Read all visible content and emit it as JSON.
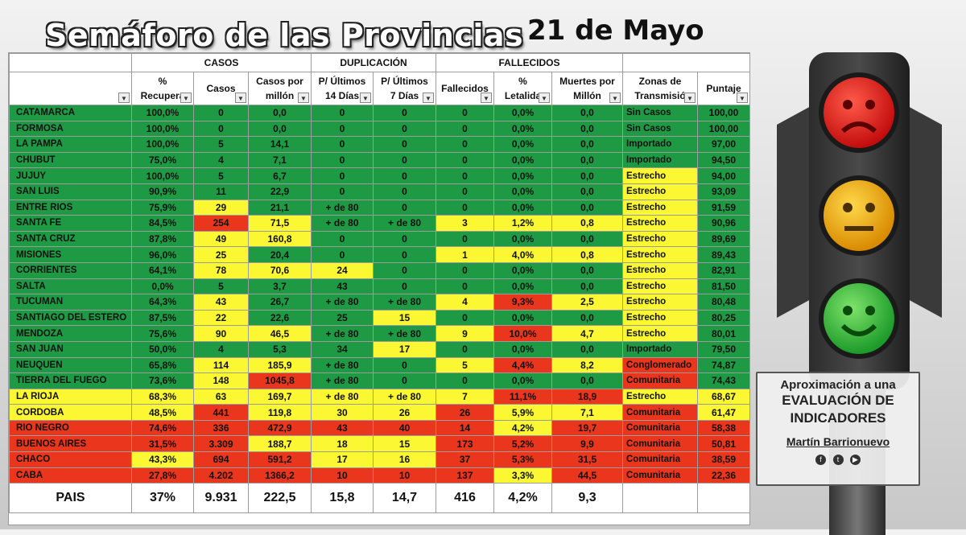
{
  "title": "Semáforo de las Provincias",
  "date": "21 de Mayo",
  "groups": {
    "casos": "CASOS",
    "duplicacion": "DUPLICACIÓN",
    "fallecidos": "FALLECIDOS"
  },
  "columns": [
    "",
    "% Recuperados",
    "Casos",
    "Casos por millón",
    "P/ Últimos 14 Días",
    "P/ Últimos 7 Días",
    "Fallecidos",
    "% Letalidad",
    "Muertes por Millón",
    "Zonas de Transmisión",
    "Puntaje"
  ],
  "col_display": [
    [
      "",
      ""
    ],
    [
      "%",
      "Recupera"
    ],
    [
      "Casos",
      ""
    ],
    [
      "Casos por",
      "millón"
    ],
    [
      "P/ Últimos",
      "14 Días"
    ],
    [
      "P/ Últimos",
      "7 Días"
    ],
    [
      "Fallecidos",
      ""
    ],
    [
      "%",
      "Letalida"
    ],
    [
      "Muertes por",
      "Millón"
    ],
    [
      "Zonas de",
      "Transmisió"
    ],
    [
      "Puntaje",
      ""
    ]
  ],
  "rows": [
    {
      "c": [
        "CATAMARCA",
        "100,0%",
        "0",
        "0,0",
        "0",
        "0",
        "0",
        "0,0%",
        "0,0",
        "Sin Casos",
        "100,00"
      ],
      "k": [
        "g",
        "g",
        "g",
        "g",
        "g",
        "g",
        "g",
        "g",
        "g",
        "g",
        "g"
      ]
    },
    {
      "c": [
        "FORMOSA",
        "100,0%",
        "0",
        "0,0",
        "0",
        "0",
        "0",
        "0,0%",
        "0,0",
        "Sin Casos",
        "100,00"
      ],
      "k": [
        "g",
        "g",
        "g",
        "g",
        "g",
        "g",
        "g",
        "g",
        "g",
        "g",
        "g"
      ]
    },
    {
      "c": [
        "LA PAMPA",
        "100,0%",
        "5",
        "14,1",
        "0",
        "0",
        "0",
        "0,0%",
        "0,0",
        "Importado",
        "97,00"
      ],
      "k": [
        "g",
        "g",
        "g",
        "g",
        "g",
        "g",
        "g",
        "g",
        "g",
        "g",
        "g"
      ]
    },
    {
      "c": [
        "CHUBUT",
        "75,0%",
        "4",
        "7,1",
        "0",
        "0",
        "0",
        "0,0%",
        "0,0",
        "Importado",
        "94,50"
      ],
      "k": [
        "g",
        "g",
        "g",
        "g",
        "g",
        "g",
        "g",
        "g",
        "g",
        "g",
        "g"
      ]
    },
    {
      "c": [
        "JUJUY",
        "100,0%",
        "5",
        "6,7",
        "0",
        "0",
        "0",
        "0,0%",
        "0,0",
        "Estrecho",
        "94,00"
      ],
      "k": [
        "g",
        "g",
        "g",
        "g",
        "g",
        "g",
        "g",
        "g",
        "g",
        "y",
        "g"
      ]
    },
    {
      "c": [
        "SAN LUIS",
        "90,9%",
        "11",
        "22,9",
        "0",
        "0",
        "0",
        "0,0%",
        "0,0",
        "Estrecho",
        "93,09"
      ],
      "k": [
        "g",
        "g",
        "g",
        "g",
        "g",
        "g",
        "g",
        "g",
        "g",
        "y",
        "g"
      ]
    },
    {
      "c": [
        "ENTRE RIOS",
        "75,9%",
        "29",
        "21,1",
        "+ de 80",
        "0",
        "0",
        "0,0%",
        "0,0",
        "Estrecho",
        "91,59"
      ],
      "k": [
        "g",
        "g",
        "y",
        "g",
        "g",
        "g",
        "g",
        "g",
        "g",
        "y",
        "g"
      ]
    },
    {
      "c": [
        "SANTA FE",
        "84,5%",
        "254",
        "71,5",
        "+ de 80",
        "+ de 80",
        "3",
        "1,2%",
        "0,8",
        "Estrecho",
        "90,96"
      ],
      "k": [
        "g",
        "g",
        "r",
        "y",
        "g",
        "g",
        "y",
        "y",
        "y",
        "y",
        "g"
      ]
    },
    {
      "c": [
        "SANTA CRUZ",
        "87,8%",
        "49",
        "160,8",
        "0",
        "0",
        "0",
        "0,0%",
        "0,0",
        "Estrecho",
        "89,69"
      ],
      "k": [
        "g",
        "g",
        "y",
        "y",
        "g",
        "g",
        "g",
        "g",
        "g",
        "y",
        "g"
      ]
    },
    {
      "c": [
        "MISIONES",
        "96,0%",
        "25",
        "20,4",
        "0",
        "0",
        "1",
        "4,0%",
        "0,8",
        "Estrecho",
        "89,43"
      ],
      "k": [
        "g",
        "g",
        "y",
        "g",
        "g",
        "g",
        "y",
        "y",
        "y",
        "y",
        "g"
      ]
    },
    {
      "c": [
        "CORRIENTES",
        "64,1%",
        "78",
        "70,6",
        "24",
        "0",
        "0",
        "0,0%",
        "0,0",
        "Estrecho",
        "82,91"
      ],
      "k": [
        "g",
        "g",
        "y",
        "y",
        "y",
        "g",
        "g",
        "g",
        "g",
        "y",
        "g"
      ]
    },
    {
      "c": [
        "SALTA",
        "0,0%",
        "5",
        "3,7",
        "43",
        "0",
        "0",
        "0,0%",
        "0,0",
        "Estrecho",
        "81,50"
      ],
      "k": [
        "g",
        "g",
        "g",
        "g",
        "g",
        "g",
        "g",
        "g",
        "g",
        "y",
        "g"
      ]
    },
    {
      "c": [
        "TUCUMAN",
        "64,3%",
        "43",
        "26,7",
        "+ de 80",
        "+ de 80",
        "4",
        "9,3%",
        "2,5",
        "Estrecho",
        "80,48"
      ],
      "k": [
        "g",
        "g",
        "y",
        "g",
        "g",
        "g",
        "y",
        "r",
        "y",
        "y",
        "g"
      ]
    },
    {
      "c": [
        "SANTIAGO DEL ESTERO",
        "87,5%",
        "22",
        "22,6",
        "25",
        "15",
        "0",
        "0,0%",
        "0,0",
        "Estrecho",
        "80,25"
      ],
      "k": [
        "g",
        "g",
        "y",
        "g",
        "g",
        "y",
        "g",
        "g",
        "g",
        "y",
        "g"
      ]
    },
    {
      "c": [
        "MENDOZA",
        "75,6%",
        "90",
        "46,5",
        "+ de 80",
        "+ de 80",
        "9",
        "10,0%",
        "4,7",
        "Estrecho",
        "80,01"
      ],
      "k": [
        "g",
        "g",
        "y",
        "y",
        "g",
        "g",
        "y",
        "r",
        "y",
        "y",
        "g"
      ]
    },
    {
      "c": [
        "SAN JUAN",
        "50,0%",
        "4",
        "5,3",
        "34",
        "17",
        "0",
        "0,0%",
        "0,0",
        "Importado",
        "79,50"
      ],
      "k": [
        "g",
        "g",
        "g",
        "g",
        "g",
        "y",
        "g",
        "g",
        "g",
        "g",
        "g"
      ]
    },
    {
      "c": [
        "NEUQUEN",
        "65,8%",
        "114",
        "185,9",
        "+ de 80",
        "0",
        "5",
        "4,4%",
        "8,2",
        "Conglomerado",
        "74,87"
      ],
      "k": [
        "g",
        "g",
        "y",
        "y",
        "g",
        "g",
        "y",
        "r",
        "y",
        "r",
        "g"
      ]
    },
    {
      "c": [
        "TIERRA DEL FUEGO",
        "73,6%",
        "148",
        "1045,8",
        "+ de 80",
        "0",
        "0",
        "0,0%",
        "0,0",
        "Comunitaria",
        "74,43"
      ],
      "k": [
        "g",
        "g",
        "y",
        "r",
        "g",
        "g",
        "g",
        "g",
        "g",
        "r",
        "g"
      ]
    },
    {
      "c": [
        "LA RIOJA",
        "68,3%",
        "63",
        "169,7",
        "+ de 80",
        "+ de 80",
        "7",
        "11,1%",
        "18,9",
        "Estrecho",
        "68,67"
      ],
      "k": [
        "y",
        "y",
        "y",
        "y",
        "y",
        "y",
        "y",
        "r",
        "r",
        "y",
        "y"
      ]
    },
    {
      "c": [
        "CORDOBA",
        "48,5%",
        "441",
        "119,8",
        "30",
        "26",
        "26",
        "5,9%",
        "7,1",
        "Comunitaria",
        "61,47"
      ],
      "k": [
        "y",
        "y",
        "r",
        "y",
        "y",
        "y",
        "r",
        "y",
        "y",
        "r",
        "y"
      ]
    },
    {
      "c": [
        "RIO NEGRO",
        "74,6%",
        "336",
        "472,9",
        "43",
        "40",
        "14",
        "4,2%",
        "19,7",
        "Comunitaria",
        "58,38"
      ],
      "k": [
        "r",
        "r",
        "r",
        "r",
        "r",
        "r",
        "r",
        "y",
        "r",
        "r",
        "r"
      ]
    },
    {
      "c": [
        "BUENOS AIRES",
        "31,5%",
        "3.309",
        "188,7",
        "18",
        "15",
        "173",
        "5,2%",
        "9,9",
        "Comunitaria",
        "50,81"
      ],
      "k": [
        "r",
        "r",
        "r",
        "y",
        "y",
        "y",
        "r",
        "r",
        "r",
        "r",
        "r"
      ]
    },
    {
      "c": [
        "CHACO",
        "43,3%",
        "694",
        "591,2",
        "17",
        "16",
        "37",
        "5,3%",
        "31,5",
        "Comunitaria",
        "38,59"
      ],
      "k": [
        "r",
        "y",
        "r",
        "r",
        "y",
        "y",
        "r",
        "r",
        "r",
        "r",
        "r"
      ]
    },
    {
      "c": [
        "CABA",
        "27,8%",
        "4.202",
        "1366,2",
        "10",
        "10",
        "137",
        "3,3%",
        "44,5",
        "Comunitaria",
        "22,36"
      ],
      "k": [
        "r",
        "r",
        "r",
        "r",
        "r",
        "r",
        "r",
        "y",
        "r",
        "r",
        "r"
      ]
    }
  ],
  "total": [
    "PAIS",
    "37%",
    "9.931",
    "222,5",
    "15,8",
    "14,7",
    "416",
    "4,2%",
    "9,3",
    "",
    ""
  ],
  "panel": {
    "line1": "Aproximación a una",
    "line2": "EVALUACIÓN DE",
    "line3": "INDICADORES",
    "author": "Martín Barrionuevo"
  },
  "colors": {
    "green": "#1f9a44",
    "yellow": "#fbf733",
    "red": "#e9361d"
  },
  "icons": [
    "traffic-light-icon",
    "sad-face-icon",
    "neutral-face-icon",
    "happy-face-icon",
    "facebook-icon",
    "twitter-icon",
    "youtube-icon",
    "filter-dropdown-icon"
  ]
}
